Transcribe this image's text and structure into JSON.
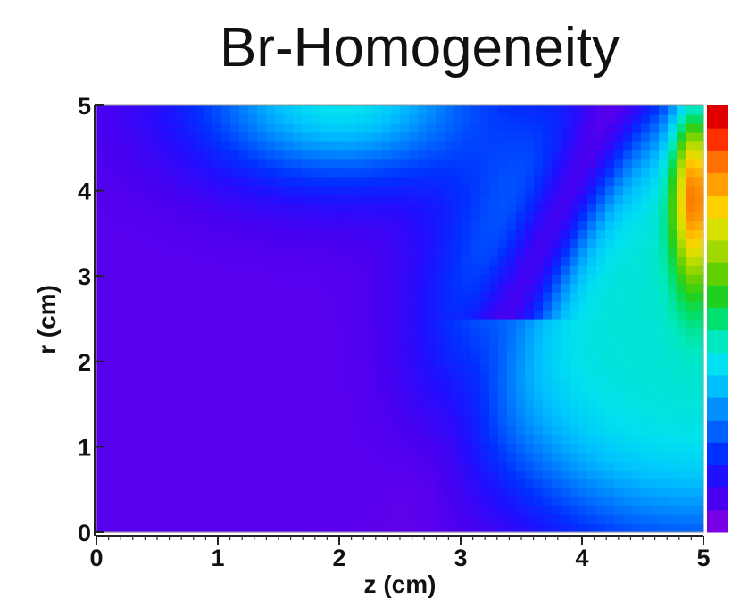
{
  "chart_data": {
    "type": "heatmap",
    "title": "Br-Homogeneity",
    "xlabel": "z (cm)",
    "ylabel": "r (cm)",
    "xlim": [
      0,
      5
    ],
    "ylim": [
      0,
      5
    ],
    "xticks": [
      "0",
      "1",
      "2",
      "3",
      "4",
      "5"
    ],
    "yticks": [
      "0",
      "1",
      "2",
      "3",
      "4",
      "5"
    ],
    "colorbar": {
      "shown": true,
      "tick_labels_visible": false,
      "colors": [
        "#7a00e6",
        "#4a00f0",
        "#1f10ff",
        "#0030ff",
        "#0060ff",
        "#0090ff",
        "#00bfff",
        "#00e0f0",
        "#00e8c0",
        "#00e070",
        "#20d020",
        "#60d000",
        "#a0d800",
        "#d8e000",
        "#ffd000",
        "#ffa000",
        "#ff7000",
        "#ff3000",
        "#e00000"
      ]
    },
    "grid": false,
    "colormap": "rainbow (violet low to red high)",
    "summary_regions": [
      {
        "description": "upper arc, high r, centered near z=2",
        "relative_level": "medium (cyan/green)"
      },
      {
        "description": "right side band z 3.5–5",
        "relative_level": "medium-high (green)"
      },
      {
        "description": "right edge z≈4.9, r 3–5",
        "relative_level": "highest (red)"
      },
      {
        "description": "lower left and central diagonal",
        "relative_level": "lowest (violet)"
      }
    ]
  }
}
